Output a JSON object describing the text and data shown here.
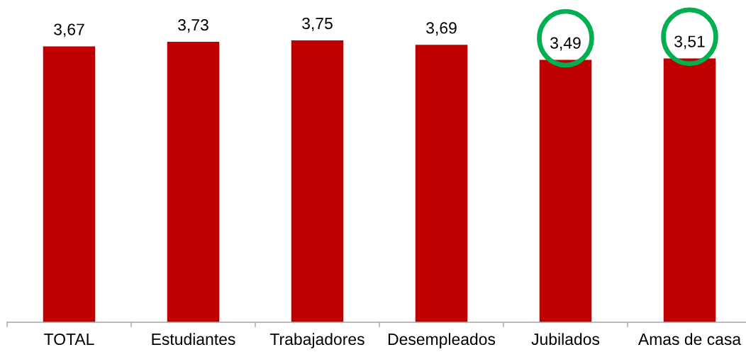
{
  "chart_data": {
    "type": "bar",
    "categories": [
      "TOTAL",
      "Estudiantes",
      "Trabajadores",
      "Desempleados",
      "Jubilados",
      "Amas de casa"
    ],
    "values": [
      3.67,
      3.73,
      3.75,
      3.69,
      3.49,
      3.51
    ],
    "color": "#c00000",
    "value_labels": [
      "3,67",
      "3,73",
      "3,75",
      "3,69",
      "3,49",
      "3,51"
    ],
    "tick_labels": "x"
  }
}
